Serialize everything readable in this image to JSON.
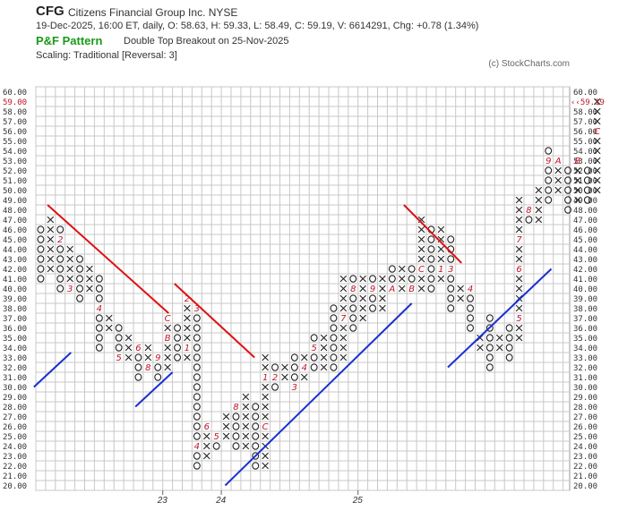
{
  "header": {
    "ticker": "CFG",
    "company": "Citizens Financial Group Inc.  NYSE",
    "quote": "19-Dec-2025, 16:00 ET, daily, O: 58.63, H: 59.33, L: 58.49, C: 59.19, V: 6614291, Chg: +0.78 (1.34%)",
    "pattern_label": "P&F Pattern",
    "pattern_desc": "Double Top Breakout on 25-Nov-2025",
    "scaling": "Scaling: Traditional [Reversal: 3]",
    "copyright": "(c) StockCharts.com"
  },
  "chart_data": {
    "type": "point-and-figure",
    "box_size": 1,
    "reversal": 3,
    "ylim": [
      20,
      60
    ],
    "y_ticks": [
      20,
      21,
      22,
      23,
      24,
      25,
      26,
      27,
      28,
      29,
      30,
      31,
      32,
      33,
      34,
      35,
      36,
      37,
      38,
      39,
      40,
      41,
      42,
      43,
      44,
      45,
      46,
      47,
      48,
      49,
      50,
      51,
      52,
      53,
      54,
      55,
      56,
      57,
      58,
      59,
      60
    ],
    "last_price": 59.19,
    "last_price_label": "59.00",
    "last_price_marker": "59.19",
    "x_labels": [
      {
        "col": 13,
        "text": "23"
      },
      {
        "col": 19,
        "text": "24"
      },
      {
        "col": 33,
        "text": "25"
      }
    ],
    "columns": [
      {
        "type": "O",
        "low": 41,
        "high": 46,
        "marks": {}
      },
      {
        "type": "X",
        "low": 42,
        "high": 47,
        "marks": {}
      },
      {
        "type": "O",
        "low": 40,
        "high": 46,
        "marks": {
          "45": "2"
        }
      },
      {
        "type": "X",
        "low": 40,
        "high": 44,
        "marks": {
          "40": "3"
        }
      },
      {
        "type": "O",
        "low": 39,
        "high": 43,
        "marks": {}
      },
      {
        "type": "X",
        "low": 40,
        "high": 42,
        "marks": {}
      },
      {
        "type": "O",
        "low": 34,
        "high": 41,
        "marks": {
          "38": "4"
        }
      },
      {
        "type": "X",
        "low": 36,
        "high": 37,
        "marks": {}
      },
      {
        "type": "O",
        "low": 33,
        "high": 36,
        "marks": {
          "33": "5"
        }
      },
      {
        "type": "X",
        "low": 33,
        "high": 35,
        "marks": {}
      },
      {
        "type": "O",
        "low": 31,
        "high": 34,
        "marks": {
          "34": "6"
        }
      },
      {
        "type": "X",
        "low": 32,
        "high": 34,
        "marks": {
          "32": "8"
        }
      },
      {
        "type": "O",
        "low": 31,
        "high": 33,
        "marks": {
          "33": "9"
        }
      },
      {
        "type": "X",
        "low": 32,
        "high": 37,
        "marks": {
          "31": "A",
          "35": "B",
          "37": "C"
        }
      },
      {
        "type": "O",
        "low": 33,
        "high": 36,
        "marks": {}
      },
      {
        "type": "X",
        "low": 33,
        "high": 39,
        "marks": {
          "34": "1",
          "39": "2"
        }
      },
      {
        "type": "O",
        "low": 22,
        "high": 38,
        "marks": {
          "38": "3",
          "24": "4"
        }
      },
      {
        "type": "X",
        "low": 23,
        "high": 26,
        "marks": {
          "26": "6"
        }
      },
      {
        "type": "O",
        "low": 24,
        "high": 25,
        "marks": {
          "25": "5"
        }
      },
      {
        "type": "X",
        "low": 25,
        "high": 27,
        "marks": {
          "24": "7"
        }
      },
      {
        "type": "O",
        "low": 24,
        "high": 28,
        "marks": {
          "28": "8"
        }
      },
      {
        "type": "X",
        "low": 24,
        "high": 29,
        "marks": {
          "22": "9",
          "21": "A"
        }
      },
      {
        "type": "O",
        "low": 22,
        "high": 28,
        "marks": {
          "21": "B"
        }
      },
      {
        "type": "X",
        "low": 22,
        "high": 33,
        "marks": {
          "26": "C",
          "31": "1"
        }
      },
      {
        "type": "O",
        "low": 30,
        "high": 32,
        "marks": {
          "31": "2"
        }
      },
      {
        "type": "X",
        "low": 31,
        "high": 32,
        "marks": {}
      },
      {
        "type": "O",
        "low": 30,
        "high": 33,
        "marks": {
          "30": "3"
        }
      },
      {
        "type": "X",
        "low": 31,
        "high": 33,
        "marks": {
          "32": "4"
        }
      },
      {
        "type": "O",
        "low": 32,
        "high": 35,
        "marks": {
          "34": "5"
        }
      },
      {
        "type": "X",
        "low": 32,
        "high": 35,
        "marks": {}
      },
      {
        "type": "O",
        "low": 32,
        "high": 38,
        "marks": {
          "31": "6"
        }
      },
      {
        "type": "X",
        "low": 33,
        "high": 41,
        "marks": {
          "37": "7"
        }
      },
      {
        "type": "O",
        "low": 36,
        "high": 41,
        "marks": {
          "40": "8"
        }
      },
      {
        "type": "X",
        "low": 37,
        "high": 41,
        "marks": {}
      },
      {
        "type": "O",
        "low": 38,
        "high": 41,
        "marks": {
          "40": "9"
        }
      },
      {
        "type": "X",
        "low": 38,
        "high": 41,
        "marks": {}
      },
      {
        "type": "O",
        "low": 40,
        "high": 42,
        "marks": {
          "40": "A"
        }
      },
      {
        "type": "X",
        "low": 40,
        "high": 42,
        "marks": {}
      },
      {
        "type": "O",
        "low": 40,
        "high": 42,
        "marks": {
          "40": "B"
        }
      },
      {
        "type": "X",
        "low": 40,
        "high": 47,
        "marks": {
          "42": "C"
        }
      },
      {
        "type": "O",
        "low": 40,
        "high": 46,
        "marks": {}
      },
      {
        "type": "X",
        "low": 41,
        "high": 46,
        "marks": {
          "42": "1"
        }
      },
      {
        "type": "O",
        "low": 38,
        "high": 45,
        "marks": {
          "46": "2",
          "42": "3"
        }
      },
      {
        "type": "X",
        "low": 39,
        "high": 40,
        "marks": {}
      },
      {
        "type": "O",
        "low": 36,
        "high": 40,
        "marks": {
          "40": "4"
        }
      },
      {
        "type": "X",
        "low": 34,
        "high": 35,
        "marks": {}
      },
      {
        "type": "O",
        "low": 32,
        "high": 37,
        "marks": {}
      },
      {
        "type": "X",
        "low": 34,
        "high": 35,
        "marks": {}
      },
      {
        "type": "O",
        "low": 33,
        "high": 36,
        "marks": {}
      },
      {
        "type": "X",
        "low": 35,
        "high": 49,
        "marks": {
          "37": "5",
          "42": "6",
          "45": "7"
        }
      },
      {
        "type": "O",
        "low": 47,
        "high": 48,
        "marks": {
          "48": "8"
        }
      },
      {
        "type": "X",
        "low": 47,
        "high": 50,
        "marks": {}
      },
      {
        "type": "O",
        "low": 49,
        "high": 54,
        "marks": {
          "53": "9"
        }
      },
      {
        "type": "X",
        "low": 50,
        "high": 53,
        "marks": {
          "53": "A"
        }
      },
      {
        "type": "O",
        "low": 48,
        "high": 52,
        "marks": {}
      },
      {
        "type": "X",
        "low": 49,
        "high": 53,
        "marks": {
          "53": "B"
        }
      },
      {
        "type": "O",
        "low": 49,
        "high": 52,
        "marks": {}
      },
      {
        "type": "X",
        "low": 50,
        "high": 59,
        "marks": {
          "56": "C"
        }
      }
    ],
    "trend_lines": [
      {
        "color": "#dd1111",
        "points": [
          [
            1.2,
            48.5
          ],
          [
            13.6,
            37.5
          ]
        ]
      },
      {
        "color": "#dd1111",
        "points": [
          [
            14.2,
            40.5
          ],
          [
            22.4,
            33.0
          ]
        ]
      },
      {
        "color": "#dd1111",
        "points": [
          [
            37.7,
            48.5
          ],
          [
            43.6,
            42.6
          ]
        ]
      },
      {
        "color": "#1a2fd0",
        "points": [
          [
            -0.2,
            30.0
          ],
          [
            3.6,
            33.5
          ]
        ]
      },
      {
        "color": "#1a2fd0",
        "points": [
          [
            10.2,
            28.0
          ],
          [
            14.0,
            31.5
          ]
        ]
      },
      {
        "color": "#1a2fd0",
        "points": [
          [
            19.4,
            20.0
          ],
          [
            38.5,
            38.5
          ]
        ]
      },
      {
        "color": "#1a2fd0",
        "points": [
          [
            42.2,
            32.0
          ],
          [
            52.8,
            42.0
          ]
        ]
      }
    ]
  }
}
